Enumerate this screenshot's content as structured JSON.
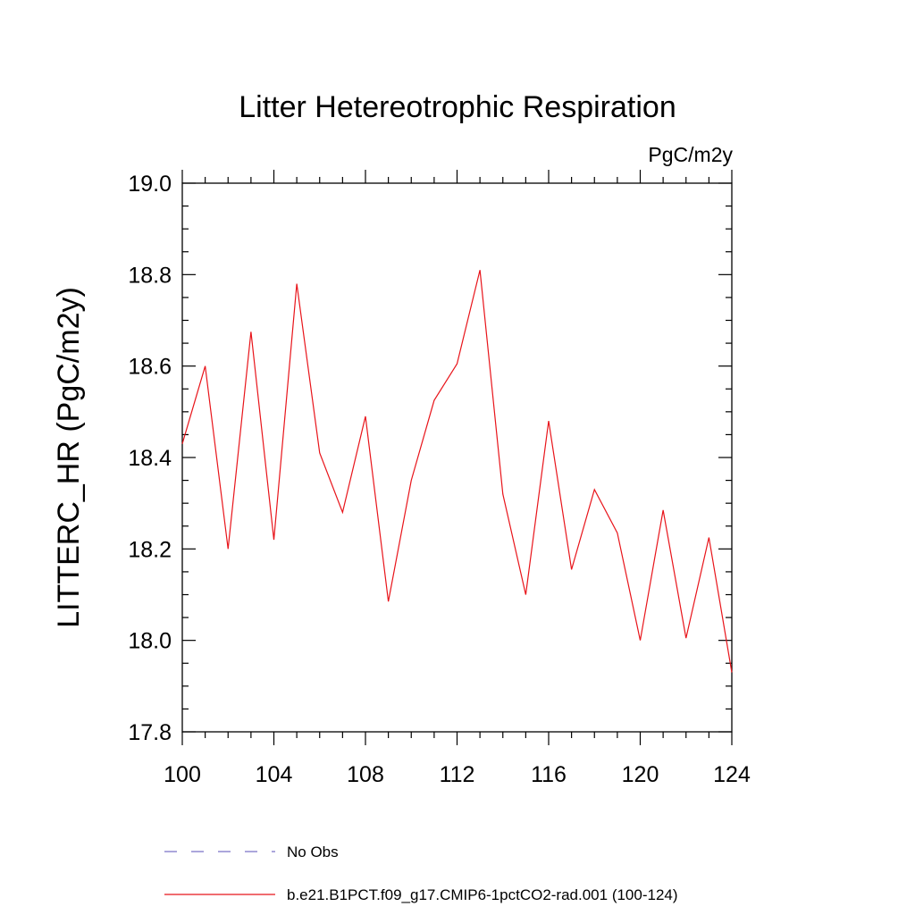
{
  "chart_data": {
    "type": "line",
    "title": "Litter Hetereotrophic Respiration",
    "units_label": "PgC/m2y",
    "ylabel": "LITTERC_HR  (PgC/m2y)",
    "xlabel": "",
    "xlim": [
      100,
      124
    ],
    "ylim": [
      17.8,
      19.0
    ],
    "x_tick_labels": [
      "100",
      "104",
      "108",
      "112",
      "116",
      "120",
      "124"
    ],
    "y_tick_labels": [
      "17.8",
      "18.0",
      "18.2",
      "18.4",
      "18.6",
      "18.8",
      "19.0"
    ],
    "grid": false,
    "legend_position": "bottom",
    "x": [
      100,
      101,
      102,
      103,
      104,
      105,
      106,
      107,
      108,
      109,
      110,
      111,
      112,
      113,
      114,
      115,
      116,
      117,
      118,
      119,
      120,
      121,
      122,
      123,
      124
    ],
    "series": [
      {
        "name": "b.e21.B1PCT.f09_g17.CMIP6-1pctCO2-rad.001 (100-124)",
        "color": "#e8141a",
        "dash": "solid",
        "values": [
          18.43,
          18.6,
          18.2,
          18.675,
          18.22,
          18.78,
          18.41,
          18.28,
          18.49,
          18.085,
          18.35,
          18.525,
          18.605,
          18.81,
          18.32,
          18.1,
          18.48,
          18.155,
          18.33,
          18.235,
          18.0,
          18.285,
          18.005,
          18.225,
          17.93
        ]
      }
    ],
    "legend": [
      {
        "label": "No Obs",
        "color": "#7b72c8",
        "dash": "dashed"
      },
      {
        "label": "b.e21.B1PCT.f09_g17.CMIP6-1pctCO2-rad.001 (100-124)",
        "color": "#e8141a",
        "dash": "solid"
      }
    ]
  }
}
